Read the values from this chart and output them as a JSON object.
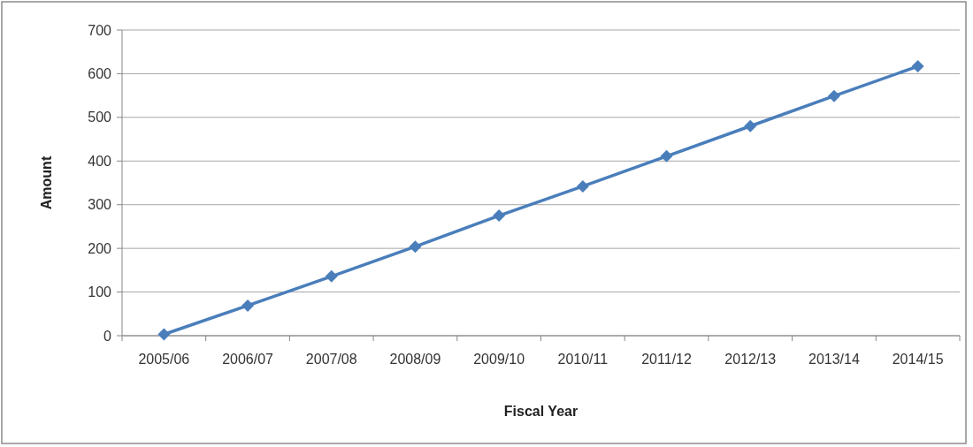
{
  "chart_data": {
    "type": "line",
    "xlabel": "Fiscal Year",
    "ylabel": "Amount",
    "categories": [
      "2005/06",
      "2006/07",
      "2007/08",
      "2008/09",
      "2009/10",
      "2010/11",
      "2011/12",
      "2012/13",
      "2013/14",
      "2014/15"
    ],
    "series": [
      {
        "color": "#4a7ebb",
        "values": [
          3,
          69,
          136,
          204,
          275,
          342,
          411,
          480,
          549,
          617
        ]
      }
    ],
    "ylim": [
      0,
      700
    ],
    "yticks": [
      0,
      100,
      200,
      300,
      400,
      500,
      600,
      700
    ],
    "grid": "y",
    "marker": "diamond",
    "line_style": "solid"
  }
}
